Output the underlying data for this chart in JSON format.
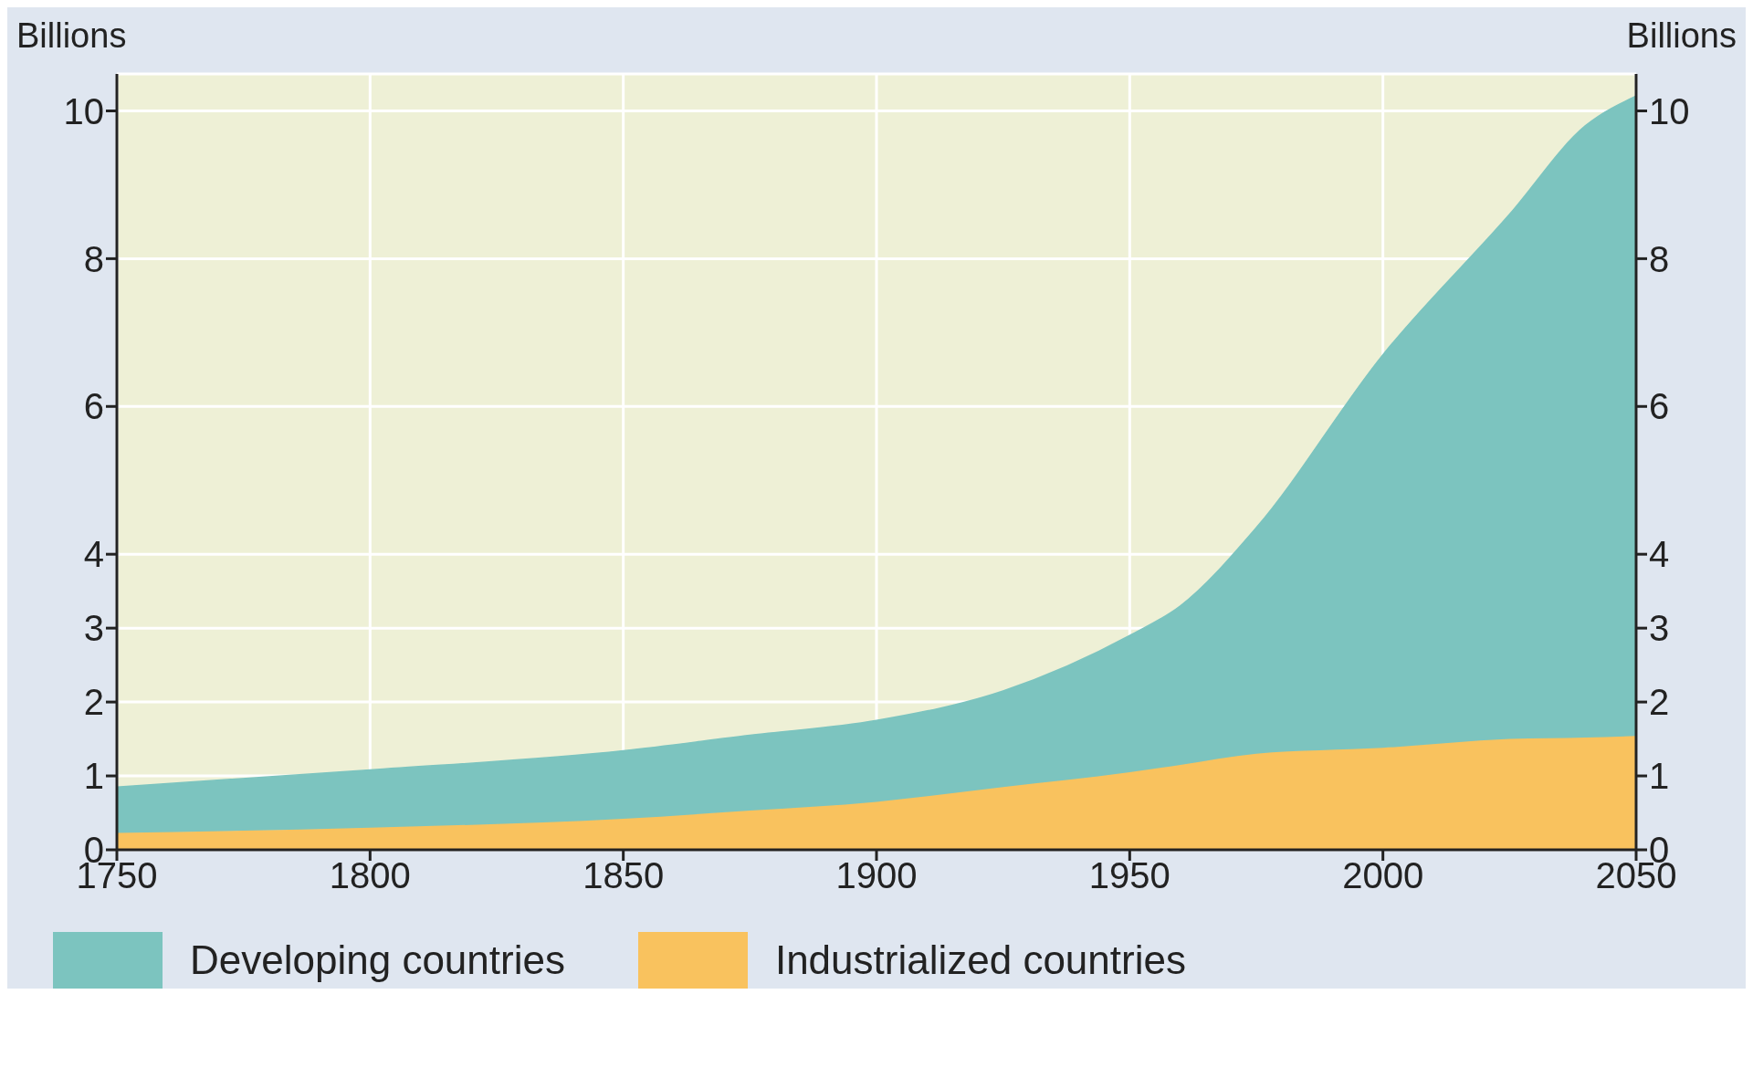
{
  "chart_data": {
    "type": "area",
    "stacked": true,
    "ylabel": "Billions",
    "y2label": "Billions",
    "x": [
      1750,
      1800,
      1850,
      1875,
      1900,
      1925,
      1950,
      1960,
      1975,
      2000,
      2025,
      2040,
      2050
    ],
    "series": [
      {
        "name": "Industrialized countries",
        "color": "#f9c25e",
        "values": [
          0.23,
          0.3,
          0.42,
          0.53,
          0.65,
          0.85,
          1.05,
          1.15,
          1.3,
          1.38,
          1.5,
          1.52,
          1.54
        ]
      },
      {
        "name": "Developing countries",
        "color": "#7cc4bf",
        "values": [
          0.62,
          0.78,
          0.92,
          1.02,
          1.1,
          1.3,
          1.85,
          2.15,
          3.06,
          5.32,
          7.1,
          8.28,
          8.66
        ]
      }
    ],
    "xlim": [
      1750,
      2050
    ],
    "xticks": [
      1750,
      1800,
      1850,
      1900,
      1950,
      2000,
      2050
    ],
    "ylim": [
      0,
      10.5
    ],
    "yticks": [
      0,
      1,
      2,
      3,
      4,
      6,
      8,
      10
    ],
    "y2lim": [
      0,
      10.5
    ],
    "y2ticks": [
      0,
      1,
      2,
      3,
      4,
      6,
      8,
      10
    ],
    "grid": true,
    "legend": "bottom"
  }
}
